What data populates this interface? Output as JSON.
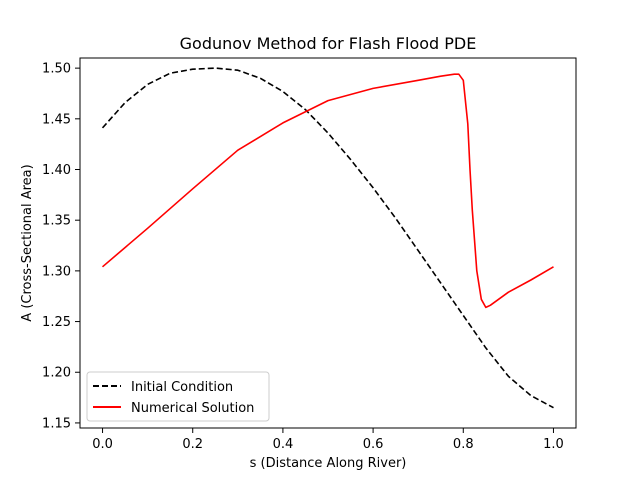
{
  "chart_data": {
    "type": "line",
    "title": "Godunov Method for Flash Flood PDE",
    "xlabel": "s (Distance Along River)",
    "ylabel": "A (Cross-Sectional Area)",
    "xlim": [
      -0.05,
      1.05
    ],
    "ylim": [
      1.145,
      1.51
    ],
    "xticks": [
      0.0,
      0.2,
      0.4,
      0.6,
      0.8,
      1.0
    ],
    "xtick_labels": [
      "0.0",
      "0.2",
      "0.4",
      "0.6",
      "0.8",
      "1.0"
    ],
    "yticks": [
      1.15,
      1.2,
      1.25,
      1.3,
      1.35,
      1.4,
      1.45,
      1.5
    ],
    "ytick_labels": [
      "1.15",
      "1.20",
      "1.25",
      "1.30",
      "1.35",
      "1.40",
      "1.45",
      "1.50"
    ],
    "grid": false,
    "legend_position": "lower-left",
    "series": [
      {
        "name": "Initial Condition",
        "color": "#000000",
        "style": "dashed",
        "x": [
          0.0,
          0.05,
          0.1,
          0.15,
          0.2,
          0.25,
          0.3,
          0.35,
          0.4,
          0.45,
          0.5,
          0.55,
          0.6,
          0.65,
          0.7,
          0.75,
          0.8,
          0.85,
          0.9,
          0.95,
          1.0
        ],
        "y": [
          1.441,
          1.466,
          1.484,
          1.495,
          1.499,
          1.5,
          1.498,
          1.49,
          1.477,
          1.459,
          1.436,
          1.41,
          1.382,
          1.352,
          1.32,
          1.288,
          1.256,
          1.224,
          1.196,
          1.177,
          1.165
        ]
      },
      {
        "name": "Numerical Solution",
        "color": "#ff0000",
        "style": "solid",
        "x": [
          0.0,
          0.1,
          0.2,
          0.3,
          0.4,
          0.5,
          0.6,
          0.7,
          0.75,
          0.78,
          0.79,
          0.8,
          0.81,
          0.815,
          0.82,
          0.83,
          0.84,
          0.85,
          0.86,
          0.9,
          0.95,
          1.0
        ],
        "y": [
          1.304,
          1.342,
          1.381,
          1.419,
          1.446,
          1.468,
          1.48,
          1.488,
          1.492,
          1.494,
          1.494,
          1.488,
          1.445,
          1.4,
          1.36,
          1.3,
          1.272,
          1.264,
          1.266,
          1.279,
          1.291,
          1.304
        ]
      }
    ]
  }
}
